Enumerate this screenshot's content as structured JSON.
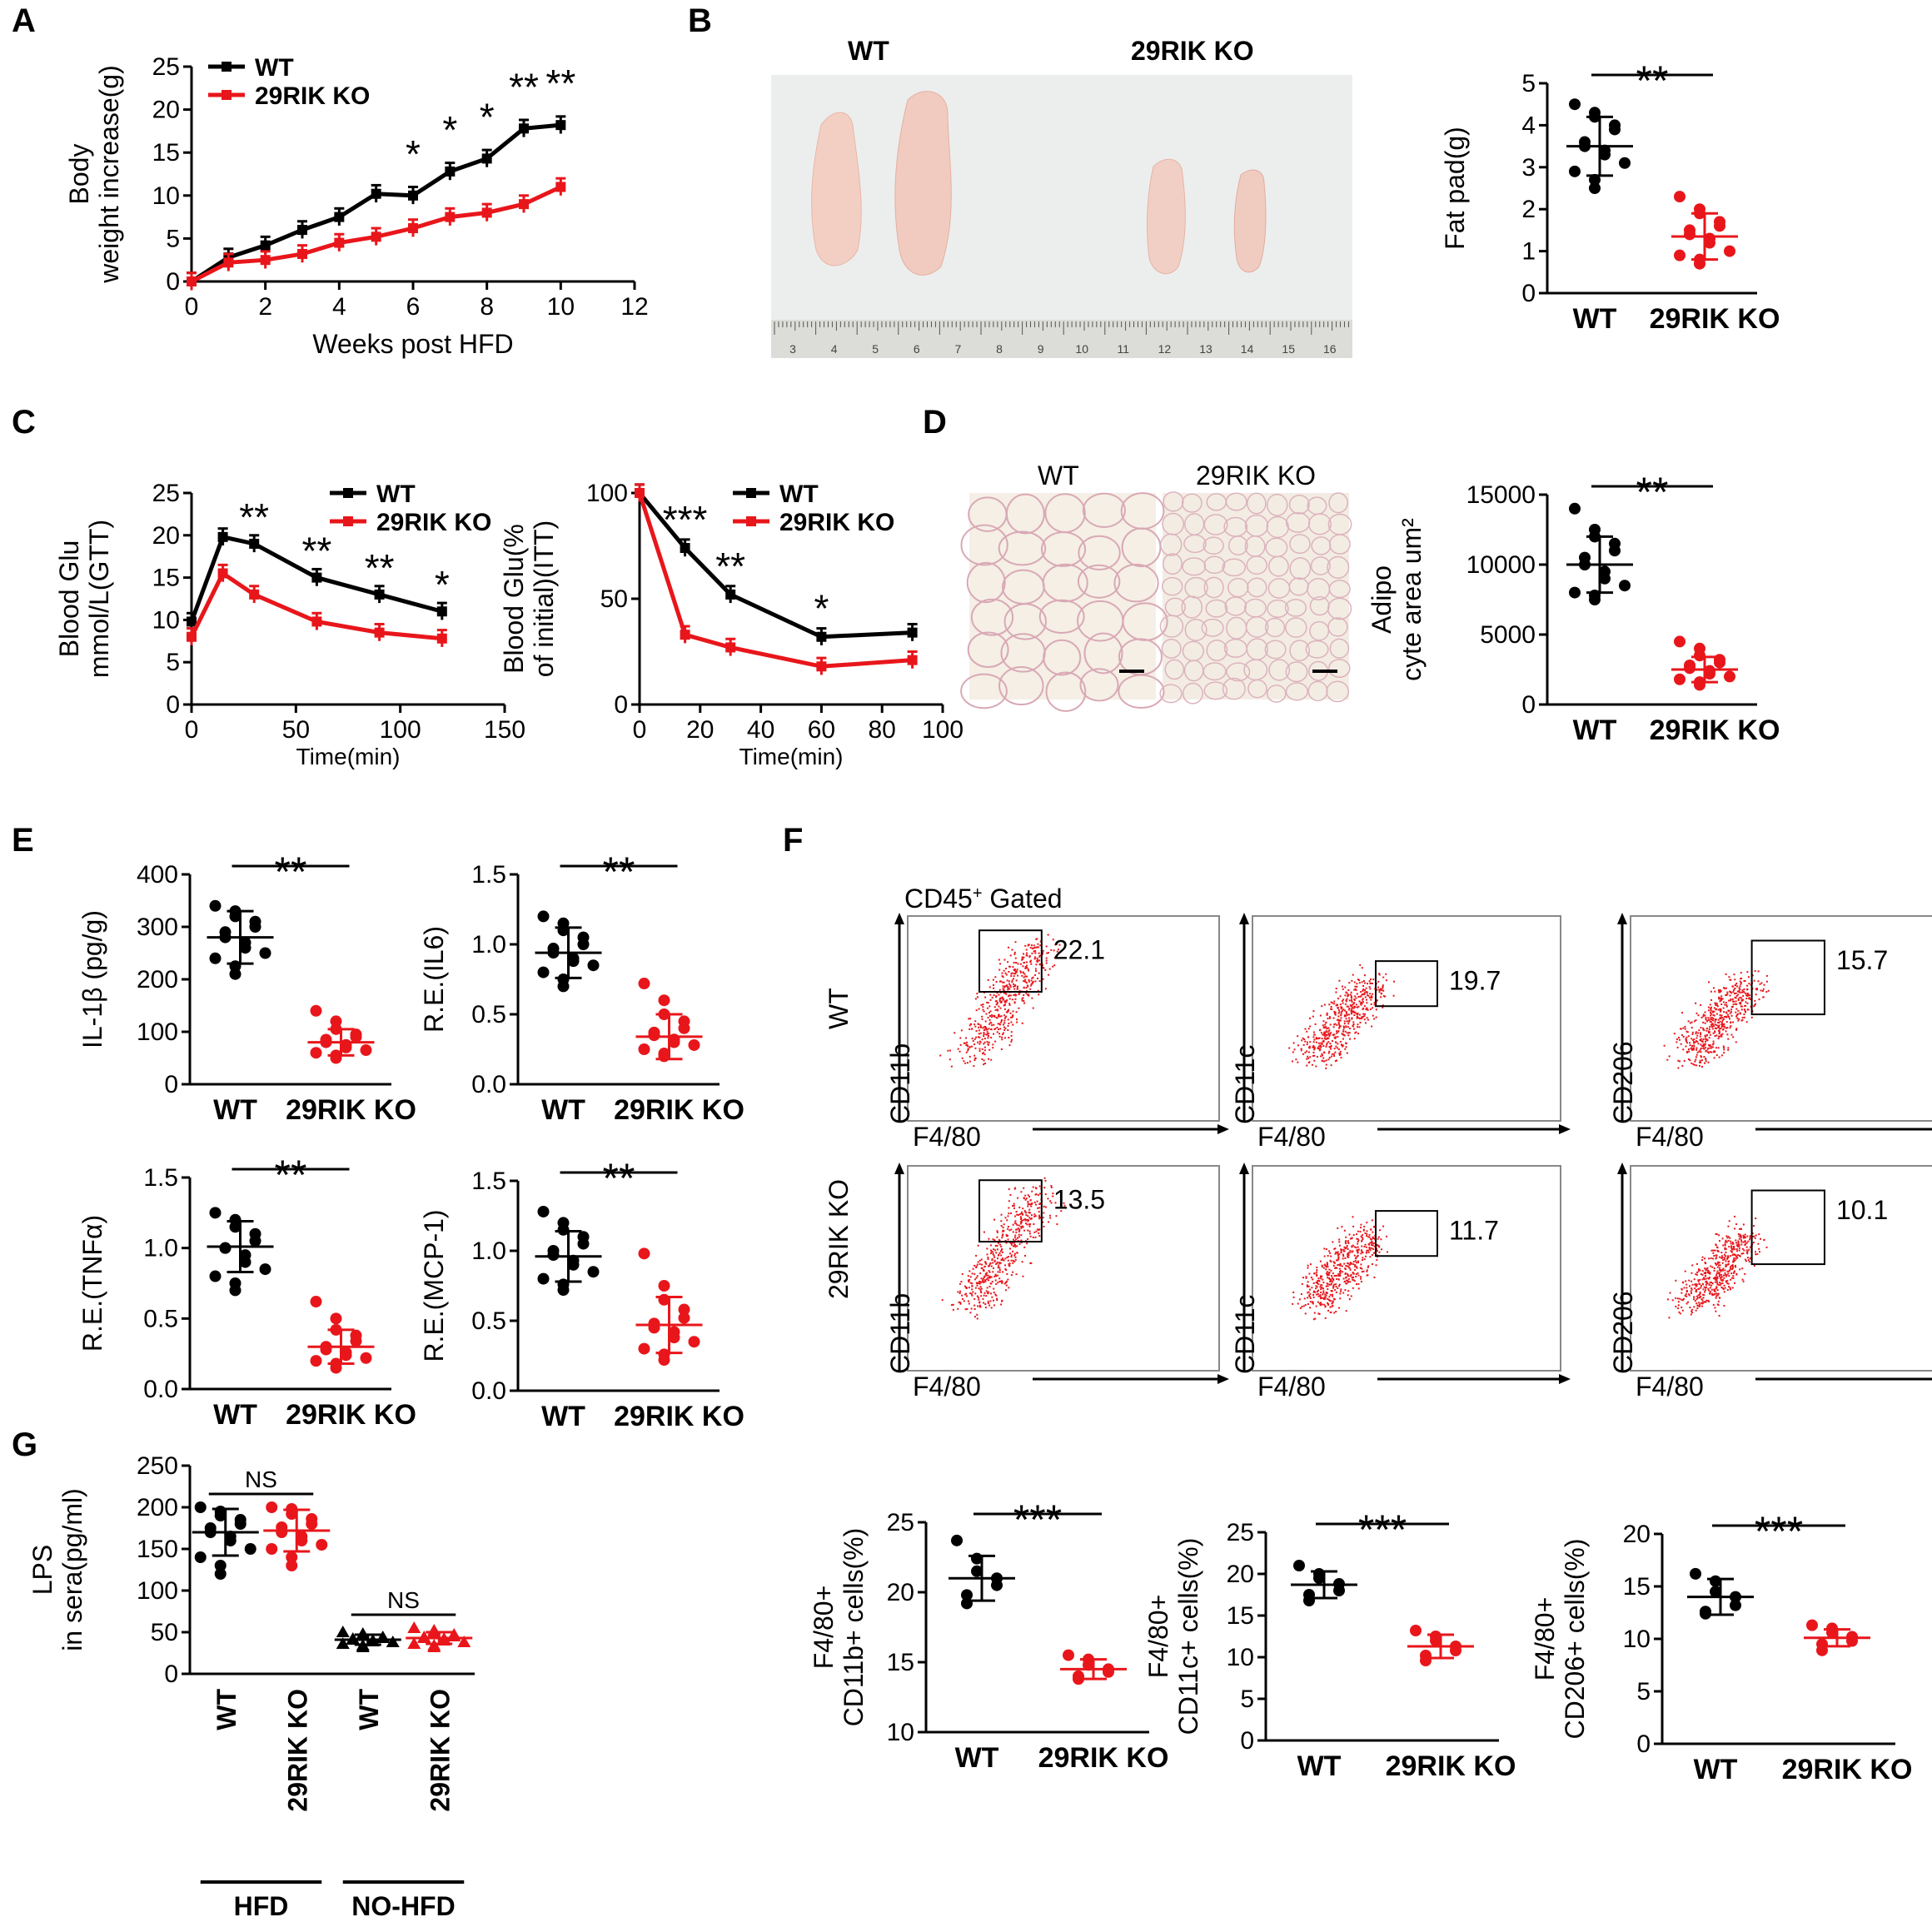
{
  "figure": {
    "panel_letters": [
      "A",
      "B",
      "C",
      "D",
      "E",
      "F",
      "G"
    ],
    "colors": {
      "wt": "#000000",
      "ko": "#e8161b",
      "photo_bg": "#eceeee",
      "ruler": "#dcdcd8"
    }
  },
  "photo_b": {
    "label_wt": "WT",
    "label_ko": "29RIK KO",
    "ruler_numbers": [
      "3",
      "4",
      "5",
      "6",
      "7",
      "8",
      "9",
      "10",
      "11",
      "12",
      "13",
      "14",
      "15",
      "16"
    ]
  },
  "histology_d": {
    "label_wt": "WT",
    "label_ko": "29RIK KO"
  },
  "flow_f": {
    "gate_title": "CD45",
    "gate_sup": "+",
    "gate_suffix": " Gated",
    "row_labels": [
      "WT",
      "29RIK KO"
    ],
    "plots": [
      {
        "ylabel": "CD11b",
        "xlabel": "F4/80",
        "wt_value": "22.1",
        "ko_value": "13.5"
      },
      {
        "ylabel": "CD11c",
        "xlabel": "F4/80",
        "wt_value": "19.7",
        "ko_value": "11.7"
      },
      {
        "ylabel": "CD206",
        "xlabel": "F4/80",
        "wt_value": "15.7",
        "ko_value": "10.1"
      }
    ]
  },
  "chart_data": [
    {
      "id": "A",
      "type": "line",
      "title": "",
      "xlabel": "Weeks post HFD",
      "ylabel": [
        "Body",
        "weight increase(g)"
      ],
      "xlim": [
        0,
        12
      ],
      "ylim": [
        0,
        25
      ],
      "xticks": [
        "0",
        "2",
        "4",
        "6",
        "8",
        "10",
        "12"
      ],
      "yticks": [
        "0",
        "5",
        "10",
        "15",
        "20",
        "25"
      ],
      "legend": [
        "WT",
        "29RIK KO"
      ],
      "series": [
        {
          "name": "WT",
          "x": [
            0,
            1,
            2,
            3,
            4,
            5,
            6,
            7,
            8,
            9,
            10
          ],
          "values": [
            0,
            2.8,
            4.2,
            6,
            7.5,
            10.2,
            10,
            12.8,
            14.3,
            17.8,
            18.2
          ]
        },
        {
          "name": "29RIK KO",
          "x": [
            0,
            1,
            2,
            3,
            4,
            5,
            6,
            7,
            8,
            9,
            10
          ],
          "values": [
            0,
            2.2,
            2.5,
            3.2,
            4.5,
            5.2,
            6.2,
            7.5,
            8,
            9,
            11
          ]
        }
      ],
      "significance": [
        {
          "x": 6,
          "label": "*"
        },
        {
          "x": 7,
          "label": "*"
        },
        {
          "x": 8,
          "label": "*"
        },
        {
          "x": 9,
          "label": "**"
        },
        {
          "x": 10,
          "label": "**"
        }
      ]
    },
    {
      "id": "B",
      "type": "scatter",
      "ylabel": [
        "Fat pad(g)"
      ],
      "ylim": [
        0,
        5
      ],
      "yticks": [
        "0",
        "1",
        "2",
        "3",
        "4",
        "5"
      ],
      "categories": [
        "WT",
        "29RIK KO"
      ],
      "series": [
        {
          "name": "WT",
          "mean": 3.5,
          "sd": 0.7,
          "values": [
            4.5,
            4.3,
            4.2,
            4.0,
            3.9,
            3.6,
            3.5,
            3.4,
            3.3,
            3.1,
            2.9,
            2.7,
            2.5
          ]
        },
        {
          "name": "29RIK KO",
          "mean": 1.35,
          "sd": 0.55,
          "values": [
            2.3,
            2.0,
            1.9,
            1.7,
            1.6,
            1.5,
            1.4,
            1.3,
            1.2,
            1.0,
            0.9,
            0.8,
            0.7
          ]
        }
      ],
      "significance": "**"
    },
    {
      "id": "C1",
      "type": "line",
      "xlabel": "Time(min)",
      "ylabel": [
        "Blood Glu",
        "mmol/L(GTT)"
      ],
      "xlim": [
        0,
        150
      ],
      "ylim": [
        0,
        25
      ],
      "xticks": [
        "0",
        "50",
        "100",
        "150"
      ],
      "yticks": [
        "0",
        "5",
        "10",
        "15",
        "20",
        "25"
      ],
      "legend": [
        "WT",
        "29RIK KO"
      ],
      "series": [
        {
          "name": "WT",
          "x": [
            0,
            15,
            30,
            60,
            90,
            120
          ],
          "values": [
            9.8,
            19.8,
            19,
            15,
            13,
            11
          ]
        },
        {
          "name": "29RIK KO",
          "x": [
            0,
            15,
            30,
            60,
            90,
            120
          ],
          "values": [
            8,
            15.5,
            13,
            9.8,
            8.5,
            7.8
          ]
        }
      ],
      "significance": [
        {
          "x": 30,
          "label": "**"
        },
        {
          "x": 60,
          "label": "**"
        },
        {
          "x": 90,
          "label": "**"
        },
        {
          "x": 120,
          "label": "*"
        }
      ]
    },
    {
      "id": "C2",
      "type": "line",
      "xlabel": "Time(min)",
      "ylabel": [
        "Blood Glu(%",
        "of initial)(ITT)"
      ],
      "xlim": [
        0,
        100
      ],
      "ylim": [
        0,
        100
      ],
      "xticks": [
        "0",
        "20",
        "40",
        "60",
        "80",
        "100"
      ],
      "yticks": [
        "0",
        "50",
        "100"
      ],
      "legend": [
        "WT",
        "29RIK KO"
      ],
      "series": [
        {
          "name": "WT",
          "x": [
            0,
            15,
            30,
            60,
            90
          ],
          "values": [
            100,
            74,
            52,
            32,
            34
          ]
        },
        {
          "name": "29RIK KO",
          "x": [
            0,
            15,
            30,
            60,
            90
          ],
          "values": [
            100,
            33,
            27,
            18,
            21
          ]
        }
      ],
      "significance": [
        {
          "x": 15,
          "label": "***"
        },
        {
          "x": 30,
          "label": "**"
        },
        {
          "x": 60,
          "label": "*"
        }
      ]
    },
    {
      "id": "D",
      "type": "scatter",
      "ylabel": [
        "Adipo",
        "cyte area um²"
      ],
      "ylim": [
        0,
        15000
      ],
      "yticks": [
        "0",
        "5000",
        "10000",
        "15000"
      ],
      "categories": [
        "WT",
        "29RIK KO"
      ],
      "series": [
        {
          "name": "WT",
          "mean": 10000,
          "sd": 2000,
          "values": [
            14000,
            12500,
            12000,
            11500,
            11000,
            10500,
            10000,
            9500,
            9000,
            8500,
            8000,
            7800,
            7500
          ]
        },
        {
          "name": "29RIK KO",
          "mean": 2500,
          "sd": 900,
          "values": [
            4500,
            4000,
            3500,
            3200,
            3000,
            2800,
            2600,
            2400,
            2200,
            2000,
            1800,
            1600,
            1400
          ]
        }
      ],
      "significance": "**"
    },
    {
      "id": "E1",
      "type": "scatter",
      "ylabel": [
        "IL-1β (pg/g)"
      ],
      "ylim": [
        0,
        400
      ],
      "yticks": [
        "0",
        "100",
        "200",
        "300",
        "400"
      ],
      "categories": [
        "WT",
        "29RIK KO"
      ],
      "series": [
        {
          "name": "WT",
          "mean": 280,
          "sd": 50,
          "values": [
            340,
            330,
            320,
            310,
            300,
            290,
            280,
            270,
            260,
            250,
            240,
            225,
            210
          ]
        },
        {
          "name": "29RIK KO",
          "mean": 80,
          "sd": 25,
          "values": [
            140,
            120,
            105,
            95,
            90,
            85,
            80,
            75,
            70,
            65,
            60,
            55,
            50
          ]
        }
      ],
      "significance": "**"
    },
    {
      "id": "E2",
      "type": "scatter",
      "ylabel": [
        "R.E.(IL6)"
      ],
      "ylim": [
        0,
        1.5
      ],
      "yticks": [
        "0.0",
        "0.5",
        "1.0",
        "1.5"
      ],
      "categories": [
        "WT",
        "29RIK KO"
      ],
      "series": [
        {
          "name": "WT",
          "mean": 0.94,
          "sd": 0.18,
          "values": [
            1.2,
            1.15,
            1.1,
            1.05,
            1.0,
            0.97,
            0.94,
            0.9,
            0.88,
            0.85,
            0.8,
            0.75,
            0.7
          ]
        },
        {
          "name": "29RIK KO",
          "mean": 0.34,
          "sd": 0.16,
          "values": [
            0.72,
            0.6,
            0.5,
            0.45,
            0.4,
            0.37,
            0.35,
            0.32,
            0.3,
            0.28,
            0.25,
            0.22,
            0.2
          ]
        }
      ],
      "significance": "**"
    },
    {
      "id": "E3",
      "type": "scatter",
      "ylabel": [
        "R.E.(TNFα)"
      ],
      "ylim": [
        0,
        1.5
      ],
      "yticks": [
        "0.0",
        "0.5",
        "1.0",
        "1.5"
      ],
      "categories": [
        "WT",
        "29RIK KO"
      ],
      "series": [
        {
          "name": "WT",
          "mean": 1.01,
          "sd": 0.18,
          "values": [
            1.25,
            1.2,
            1.15,
            1.1,
            1.05,
            1.0,
            1.0,
            0.95,
            0.9,
            0.85,
            0.8,
            0.75,
            0.7
          ]
        },
        {
          "name": "29RIK KO",
          "mean": 0.3,
          "sd": 0.12,
          "values": [
            0.62,
            0.5,
            0.42,
            0.38,
            0.34,
            0.3,
            0.28,
            0.26,
            0.24,
            0.22,
            0.2,
            0.18,
            0.15
          ]
        }
      ],
      "significance": "**"
    },
    {
      "id": "E4",
      "type": "scatter",
      "ylabel": [
        "R.E.(MCP-1)"
      ],
      "ylim": [
        0,
        1.5
      ],
      "yticks": [
        "0.0",
        "0.5",
        "1.0",
        "1.5"
      ],
      "categories": [
        "WT",
        "29RIK KO"
      ],
      "series": [
        {
          "name": "WT",
          "mean": 0.96,
          "sd": 0.18,
          "values": [
            1.28,
            1.2,
            1.15,
            1.1,
            1.05,
            1.0,
            0.97,
            0.93,
            0.9,
            0.85,
            0.8,
            0.76,
            0.72
          ]
        },
        {
          "name": "29RIK KO",
          "mean": 0.47,
          "sd": 0.2,
          "values": [
            0.98,
            0.75,
            0.65,
            0.58,
            0.52,
            0.48,
            0.45,
            0.42,
            0.38,
            0.35,
            0.3,
            0.26,
            0.22
          ]
        }
      ],
      "significance": "**"
    },
    {
      "id": "F1",
      "type": "scatter",
      "ylabel": [
        "F4/80+",
        "CD11b+ cells(%)"
      ],
      "ylim": [
        10,
        25
      ],
      "yticks": [
        "10",
        "15",
        "20",
        "25"
      ],
      "categories": [
        "WT",
        "29RIK KO"
      ],
      "series": [
        {
          "name": "WT",
          "mean": 21,
          "sd": 1.6,
          "values": [
            23.7,
            22.4,
            21.5,
            21,
            20.5,
            19.8,
            19.2
          ]
        },
        {
          "name": "29RIK KO",
          "mean": 14.5,
          "sd": 0.7,
          "values": [
            15.5,
            15.2,
            14.8,
            14.5,
            14.3,
            14.0,
            13.8
          ]
        }
      ],
      "significance": "***"
    },
    {
      "id": "F2",
      "type": "scatter",
      "ylabel": [
        "F4/80+",
        "CD11c+ cells(%)"
      ],
      "ylim": [
        0,
        25
      ],
      "yticks": [
        "0",
        "5",
        "10",
        "15",
        "20",
        "25"
      ],
      "categories": [
        "WT",
        "29RIK KO"
      ],
      "series": [
        {
          "name": "WT",
          "mean": 18.7,
          "sd": 1.6,
          "values": [
            21,
            20,
            19.5,
            18.8,
            18,
            17.5,
            16.8
          ]
        },
        {
          "name": "29RIK KO",
          "mean": 11.3,
          "sd": 1.4,
          "values": [
            13.2,
            12.5,
            12,
            11.3,
            10.8,
            10.2,
            9.6
          ]
        }
      ],
      "significance": "***"
    },
    {
      "id": "F3",
      "type": "scatter",
      "ylabel": [
        "F4/80+",
        "CD206+ cells(%)"
      ],
      "ylim": [
        0,
        20
      ],
      "yticks": [
        "0",
        "5",
        "10",
        "15",
        "20"
      ],
      "categories": [
        "WT",
        "29RIK KO"
      ],
      "series": [
        {
          "name": "WT",
          "mean": 14,
          "sd": 1.7,
          "values": [
            16.2,
            15.5,
            14.5,
            14,
            13.2,
            12.6,
            12.4
          ]
        },
        {
          "name": "29RIK KO",
          "mean": 10.1,
          "sd": 0.8,
          "values": [
            11.3,
            11.0,
            10.6,
            10.2,
            9.8,
            9.5,
            8.9
          ]
        }
      ],
      "significance": "***"
    },
    {
      "id": "G",
      "type": "scatter",
      "ylabel": [
        "LPS",
        "in sera(pg/ml)"
      ],
      "ylim": [
        0,
        250
      ],
      "yticks": [
        "0",
        "50",
        "100",
        "150",
        "200",
        "250"
      ],
      "categories": [
        "WT",
        "29RIK KO",
        "WT",
        "29RIK KO"
      ],
      "groups": [
        {
          "label": "HFD",
          "span": [
            0,
            1
          ]
        },
        {
          "label": "NO-HFD",
          "span": [
            2,
            3
          ]
        }
      ],
      "series": [
        {
          "name": "WT",
          "group": "HFD",
          "mean": 170,
          "sd": 28,
          "values": [
            200,
            195,
            190,
            185,
            180,
            175,
            170,
            165,
            160,
            150,
            140,
            130,
            120
          ]
        },
        {
          "name": "29RIK KO",
          "group": "HFD",
          "mean": 172,
          "sd": 25,
          "values": [
            200,
            198,
            192,
            186,
            180,
            176,
            170,
            165,
            160,
            155,
            150,
            140,
            130
          ]
        },
        {
          "name": "WT",
          "group": "NO-HFD",
          "mean": 41,
          "sd": 6,
          "values": [
            50,
            48,
            46,
            44,
            43,
            42,
            41,
            40,
            39,
            38,
            36,
            34,
            32
          ]
        },
        {
          "name": "29RIK KO",
          "group": "NO-HFD",
          "mean": 43,
          "sd": 7,
          "values": [
            55,
            52,
            50,
            47,
            45,
            44,
            43,
            42,
            40,
            38,
            36,
            34,
            32
          ]
        }
      ],
      "significance_pairs": [
        {
          "label": "NS",
          "between": [
            0,
            1
          ]
        },
        {
          "label": "NS",
          "between": [
            2,
            3
          ]
        }
      ]
    }
  ]
}
